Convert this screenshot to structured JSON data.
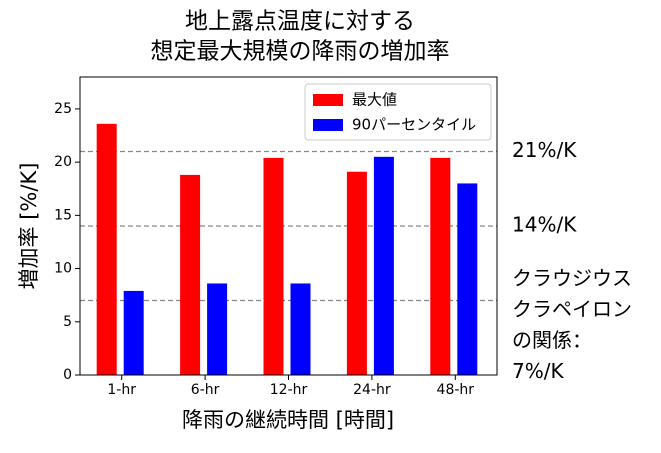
{
  "chart_data": {
    "type": "bar",
    "title": [
      "地上露点温度に対する",
      "想定最大規模の降雨の増加率"
    ],
    "ylabel": "増加率 [%/K]",
    "xlabel": "降雨の継続時間 [時間]",
    "categories": [
      "1-hr",
      "6-hr",
      "12-hr",
      "24-hr",
      "48-hr"
    ],
    "series": [
      {
        "name": "最大値",
        "color": "#ff0000",
        "values": [
          23.6,
          18.8,
          20.4,
          19.1,
          20.4
        ]
      },
      {
        "name": "90パーセンタイル",
        "color": "#0000ff",
        "values": [
          7.9,
          8.6,
          8.6,
          20.5,
          18.0
        ]
      }
    ],
    "ylim": [
      0,
      28
    ],
    "yticks": [
      0,
      5,
      10,
      15,
      20,
      25
    ],
    "legend": "upper right",
    "reference_lines": [
      {
        "value": 21,
        "label": [
          "21%/K"
        ]
      },
      {
        "value": 14,
        "label": [
          "14%/K"
        ]
      },
      {
        "value": 7,
        "label": [
          "クラウジウス",
          "クラペイロン",
          "の関係：",
          "7%/K"
        ]
      }
    ]
  }
}
